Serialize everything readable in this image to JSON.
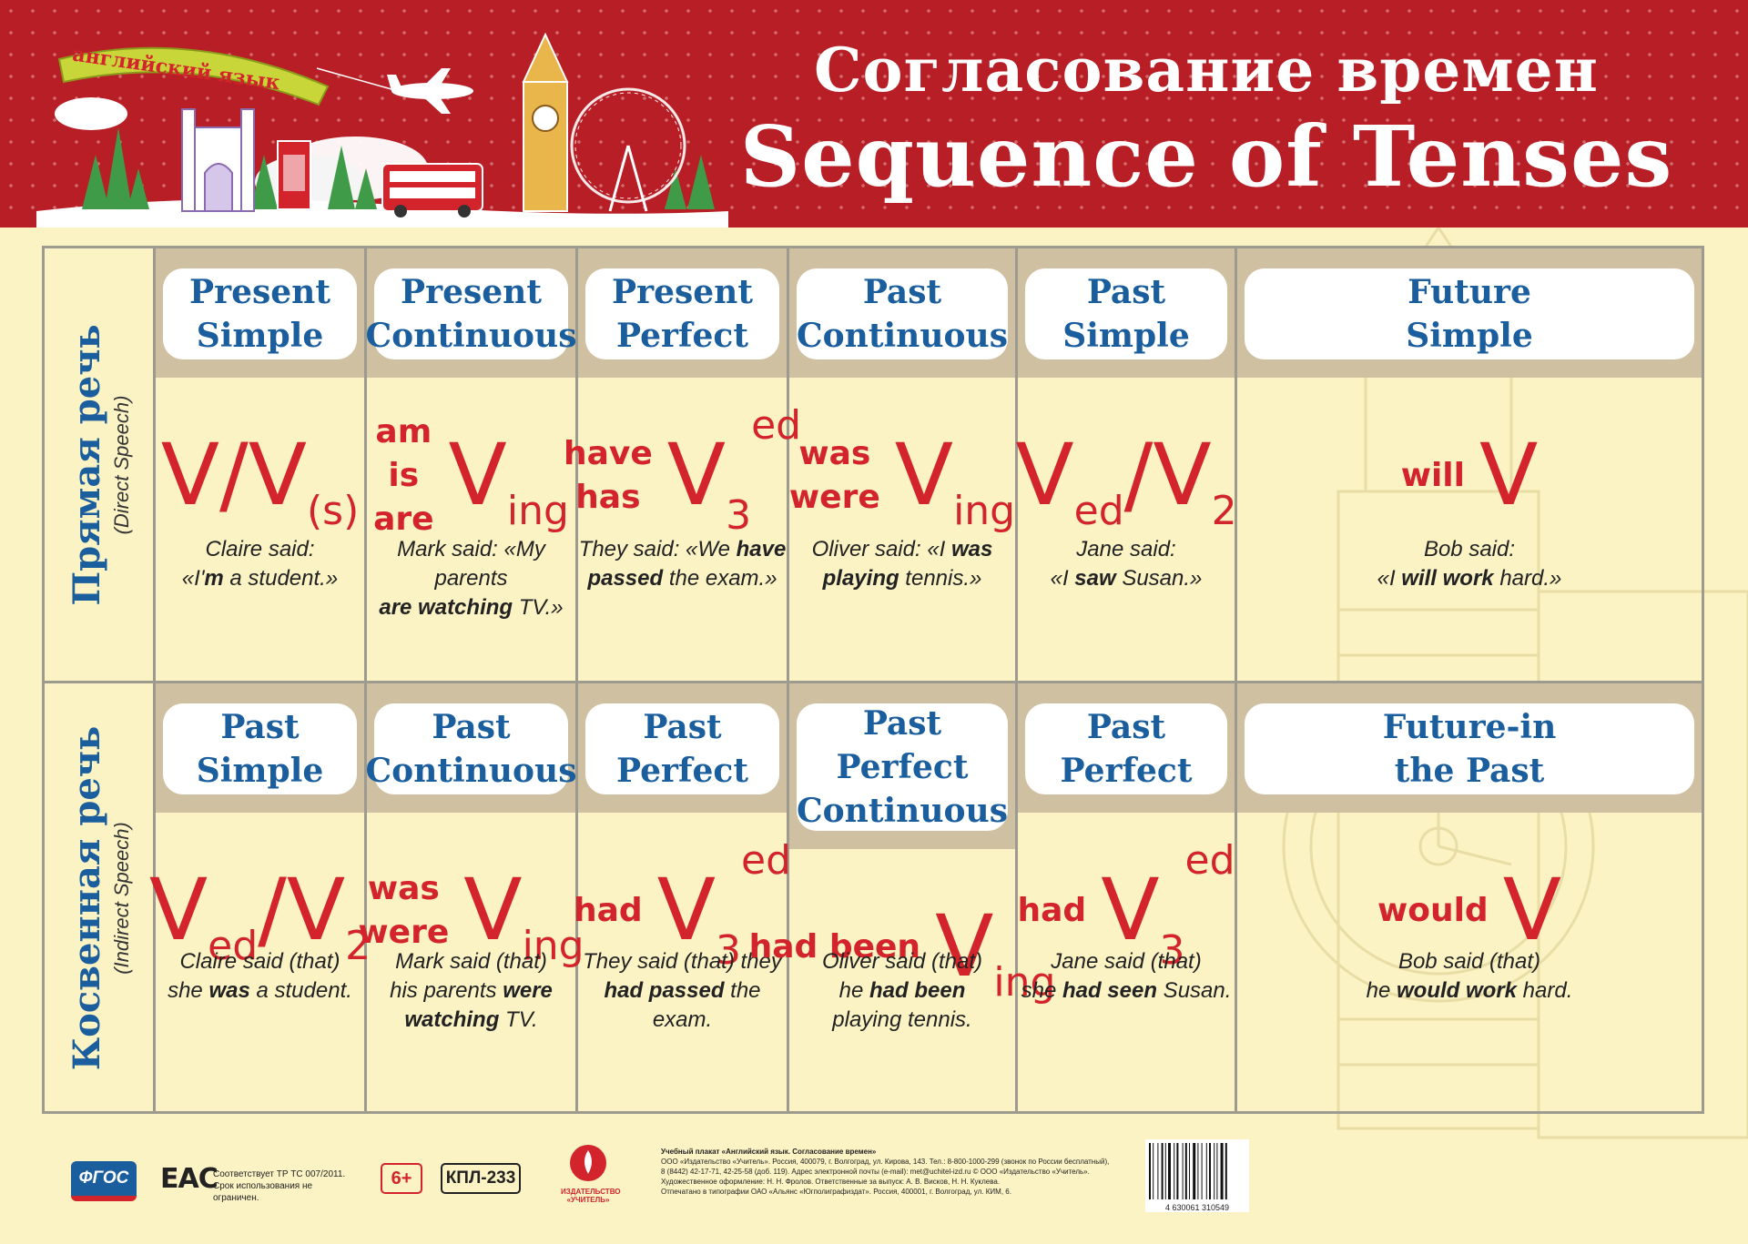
{
  "header": {
    "banner_text": "английский язык",
    "title_ru": "Согласование времен",
    "title_en": "Sequence of Tenses"
  },
  "rows": [
    {
      "label_main": "Прямая речь",
      "label_sub": "(Direct Speech)",
      "cells": [
        {
          "tense": [
            "Present",
            "Simple"
          ],
          "example": [
            "Claire said:",
            "«I'm a student.»"
          ],
          "bold": [
            "m"
          ]
        },
        {
          "tense": [
            "Present",
            "Continuous"
          ],
          "aux": [
            "am",
            "is",
            "are"
          ],
          "example": [
            "Mark said: «My  parents",
            "are watching TV.»"
          ]
        },
        {
          "tense": [
            "Present",
            "Perfect"
          ],
          "aux": [
            "have",
            "has"
          ],
          "example": [
            "They said: «We have",
            "passed the exam.»"
          ]
        },
        {
          "tense": [
            "Past",
            "Continuous"
          ],
          "aux": [
            "was",
            "were"
          ],
          "example": [
            "Oliver said: «I was",
            "playing tennis.»"
          ]
        },
        {
          "tense": [
            "Past",
            "Simple"
          ],
          "example": [
            "Jane said:",
            "«I saw Susan.»"
          ]
        },
        {
          "tense": [
            "Future",
            "Simple"
          ],
          "aux": [
            "will"
          ],
          "example": [
            "Bob said:",
            "«I will work hard.»"
          ]
        }
      ]
    },
    {
      "label_main": "Косвенная речь",
      "label_sub": "(Indirect Speech)",
      "cells": [
        {
          "tense": [
            "Past",
            "Simple"
          ],
          "example": [
            "Claire said (that)",
            "she was a student."
          ]
        },
        {
          "tense": [
            "Past",
            "Continuous"
          ],
          "aux": [
            "was",
            "were"
          ],
          "example": [
            "Mark said (that)",
            "his parents were",
            "watching TV."
          ]
        },
        {
          "tense": [
            "Past",
            "Perfect"
          ],
          "aux": [
            "had"
          ],
          "example": [
            "They said (that) they",
            "had passed the exam."
          ]
        },
        {
          "tense": [
            "Past",
            "Perfect",
            "Continuous"
          ],
          "aux": [
            "had been"
          ],
          "example": [
            "Oliver said (that)",
            "he had been",
            "playing tennis."
          ]
        },
        {
          "tense": [
            "Past",
            "Perfect"
          ],
          "aux": [
            "had"
          ],
          "example": [
            "Jane said (that)",
            "she had seen Susan."
          ]
        },
        {
          "tense": [
            "Future-in",
            "the Past"
          ],
          "aux": [
            "would"
          ],
          "example": [
            "Bob said (that)",
            "he would work hard."
          ]
        }
      ]
    }
  ],
  "formula_parts": {
    "V": "V",
    "slash": "/",
    "s": "(s)",
    "ing": "ing",
    "ed": "ed",
    "two": "2",
    "three": "3"
  },
  "footer": {
    "fgos": "ФГОС",
    "eac": "EAC",
    "cert": [
      "Соответствует ТР ТС 007/2011.",
      "Срок использования не ограничен."
    ],
    "age": "6+",
    "code": "КПЛ-233",
    "publisher": [
      "ИЗДАТЕЛЬСТВО",
      "«УЧИТЕЛЬ»"
    ],
    "imprint_title": "Учебный плакат «Английский язык. Согласование времен»",
    "imprint": [
      "ООО «Издательство «Учитель». Россия, 400079, г. Волгоград, ул. Кирова, 143. Тел.: 8-800-1000-299 (звонок по России бесплатный),",
      "8 (8442) 42-17-71, 42-25-58 (доб. 119). Адрес электронной почты (e-mail): met@uchitel-izd.ru © ООО «Издательство «Учитель».",
      "Художественное оформление: Н. Н. Фролов. Ответственные за выпуск: А. В. Висков, Н. Н. Куклева.",
      "Отпечатано в типографии ОАО «Альянс «Югполиграфиздат». Россия, 400001, г. Волгоград, ул. КИМ, 6."
    ],
    "barcode": "4 630061 310549"
  },
  "colors": {
    "header_red": "#b81e25",
    "formula_red": "#d3242b",
    "tense_blue": "#1b5e9e",
    "background": "#fbf3c4",
    "band": "#cec0a0"
  }
}
